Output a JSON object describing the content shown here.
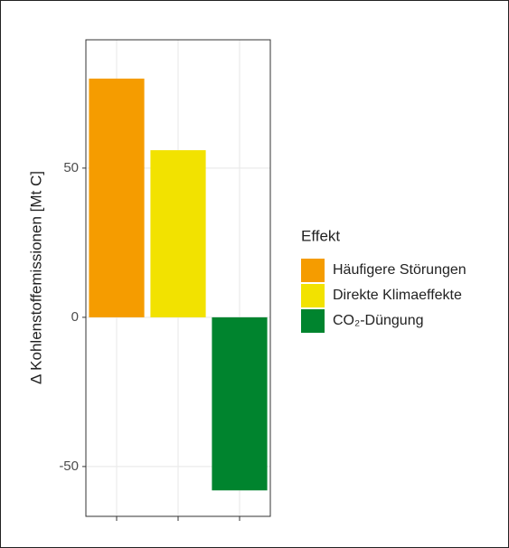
{
  "chart_data": {
    "type": "bar",
    "y_label": "Δ Kohlenstoffemissionen [Mt C]",
    "categories": [
      null,
      null,
      null
    ],
    "values": [
      80,
      56,
      -58
    ],
    "colors": [
      "#f59c00",
      "#f2e200",
      "#00842e"
    ],
    "ylim": [
      -66.7,
      93
    ],
    "yticks": [
      -50,
      0,
      50
    ],
    "grid": true,
    "legend_title": "Effekt",
    "legend_labels": [
      "Häufigere Störungen",
      "Direkte Klimaeffekte",
      "CO₂-Düngung"
    ],
    "legend_position": "right"
  }
}
